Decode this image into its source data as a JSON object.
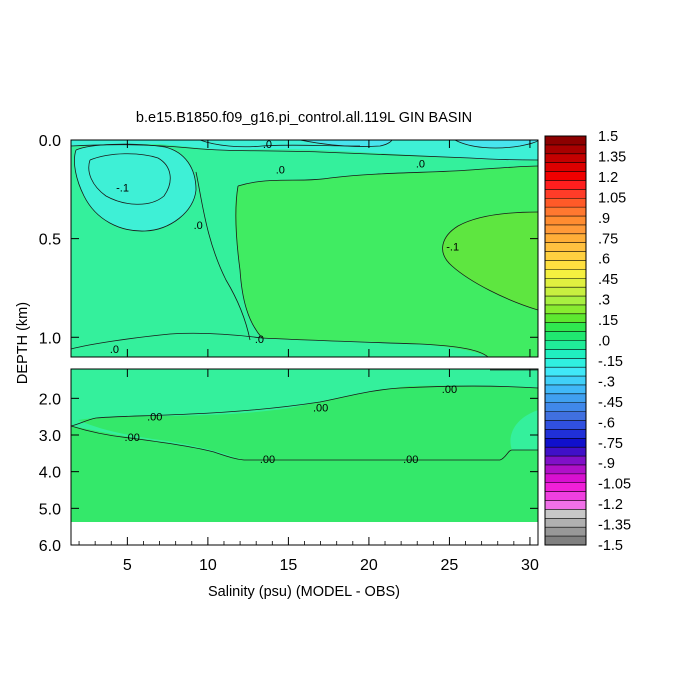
{
  "chart_data": {
    "type": "heatmap",
    "title": "b.e15.B1850.f09_g16.pi_control.all.119L GIN BASIN",
    "xlabel": "Salinity (psu) (MODEL - OBS)",
    "ylabel": "DEPTH (km)",
    "x_range": [
      1.5,
      30.5
    ],
    "x_ticks": [
      5,
      10,
      15,
      20,
      25,
      30
    ],
    "x_tick_labels": [
      "5",
      "10",
      "15",
      "20",
      "25",
      "30"
    ],
    "upper_panel": {
      "depth_range": [
        0.0,
        1.1
      ],
      "y_ticks": [
        0.0,
        0.5,
        1.0
      ],
      "y_tick_labels": [
        "0.0",
        "0.5",
        "1.0"
      ],
      "contour_labels": [
        {
          "text": ".0",
          "x": 13.7,
          "depth": 0.02
        },
        {
          "text": ".0",
          "x": 14.5,
          "depth": 0.15
        },
        {
          "text": ".0",
          "x": 23.2,
          "depth": 0.12
        },
        {
          "text": "-.1",
          "x": 4.7,
          "depth": 0.24
        },
        {
          "text": ".0",
          "x": 9.4,
          "depth": 0.43
        },
        {
          "text": "-.1",
          "x": 25.2,
          "depth": 0.54
        },
        {
          "text": ".0",
          "x": 4.2,
          "depth": 1.06
        },
        {
          "text": ".0",
          "x": 13.2,
          "depth": 1.01
        }
      ]
    },
    "lower_panel": {
      "depth_range": [
        1.2,
        6.0
      ],
      "data_bottom_depth": 5.35,
      "y_ticks": [
        2.0,
        3.0,
        4.0,
        5.0,
        6.0
      ],
      "y_tick_labels": [
        "2.0",
        "3.0",
        "4.0",
        "5.0",
        "6.0"
      ],
      "contour_labels": [
        {
          "text": ".00",
          "x": 25.0,
          "depth": 1.75
        },
        {
          "text": ".00",
          "x": 17.0,
          "depth": 2.25
        },
        {
          "text": ".00",
          "x": 6.7,
          "depth": 2.5
        },
        {
          "text": ".00",
          "x": 5.3,
          "depth": 3.05
        },
        {
          "text": ".00",
          "x": 13.7,
          "depth": 3.65
        },
        {
          "text": ".00",
          "x": 22.6,
          "depth": 3.65
        }
      ]
    },
    "colorbar": {
      "labels": [
        "1.5",
        "1.35",
        "1.2",
        "1.05",
        ".9",
        ".75",
        ".6",
        ".45",
        ".3",
        ".15",
        ".0",
        "-.15",
        "-.3",
        "-.45",
        "-.6",
        "-.75",
        "-.9",
        "-1.05",
        "-1.2",
        "-1.35",
        "-1.5"
      ],
      "bands_per_label": 2,
      "colors": [
        "#8c0000",
        "#a80000",
        "#c40000",
        "#dc0000",
        "#f00000",
        "#ff1e1e",
        "#ff3c28",
        "#ff5a28",
        "#ff7830",
        "#ff8c30",
        "#ff9a38",
        "#ffae38",
        "#ffc040",
        "#ffd040",
        "#ffe040",
        "#f5f040",
        "#e0f040",
        "#c8f040",
        "#a8f040",
        "#88ec30",
        "#5ee830",
        "#30e850",
        "#20e870",
        "#20ec98",
        "#20f0c0",
        "#30f0e0",
        "#40e8f8",
        "#40d0f8",
        "#40b8f8",
        "#40a0f0",
        "#4088ea",
        "#4070e0",
        "#3050e0",
        "#2030d8",
        "#1010cc",
        "#4010c8",
        "#8010c8",
        "#b010c8",
        "#d810d0",
        "#f020d8",
        "#f040e0",
        "#f070e8",
        "#c8c8c8",
        "#b0b0b0",
        "#989898",
        "#808080"
      ]
    },
    "fill_colors": {
      "base_green": "#30e880",
      "slightly_negative": "#30f0a0",
      "cyan_negative": "#38f0d8",
      "positive_green": "#58e84a",
      "deep_green": "#34e664"
    }
  }
}
